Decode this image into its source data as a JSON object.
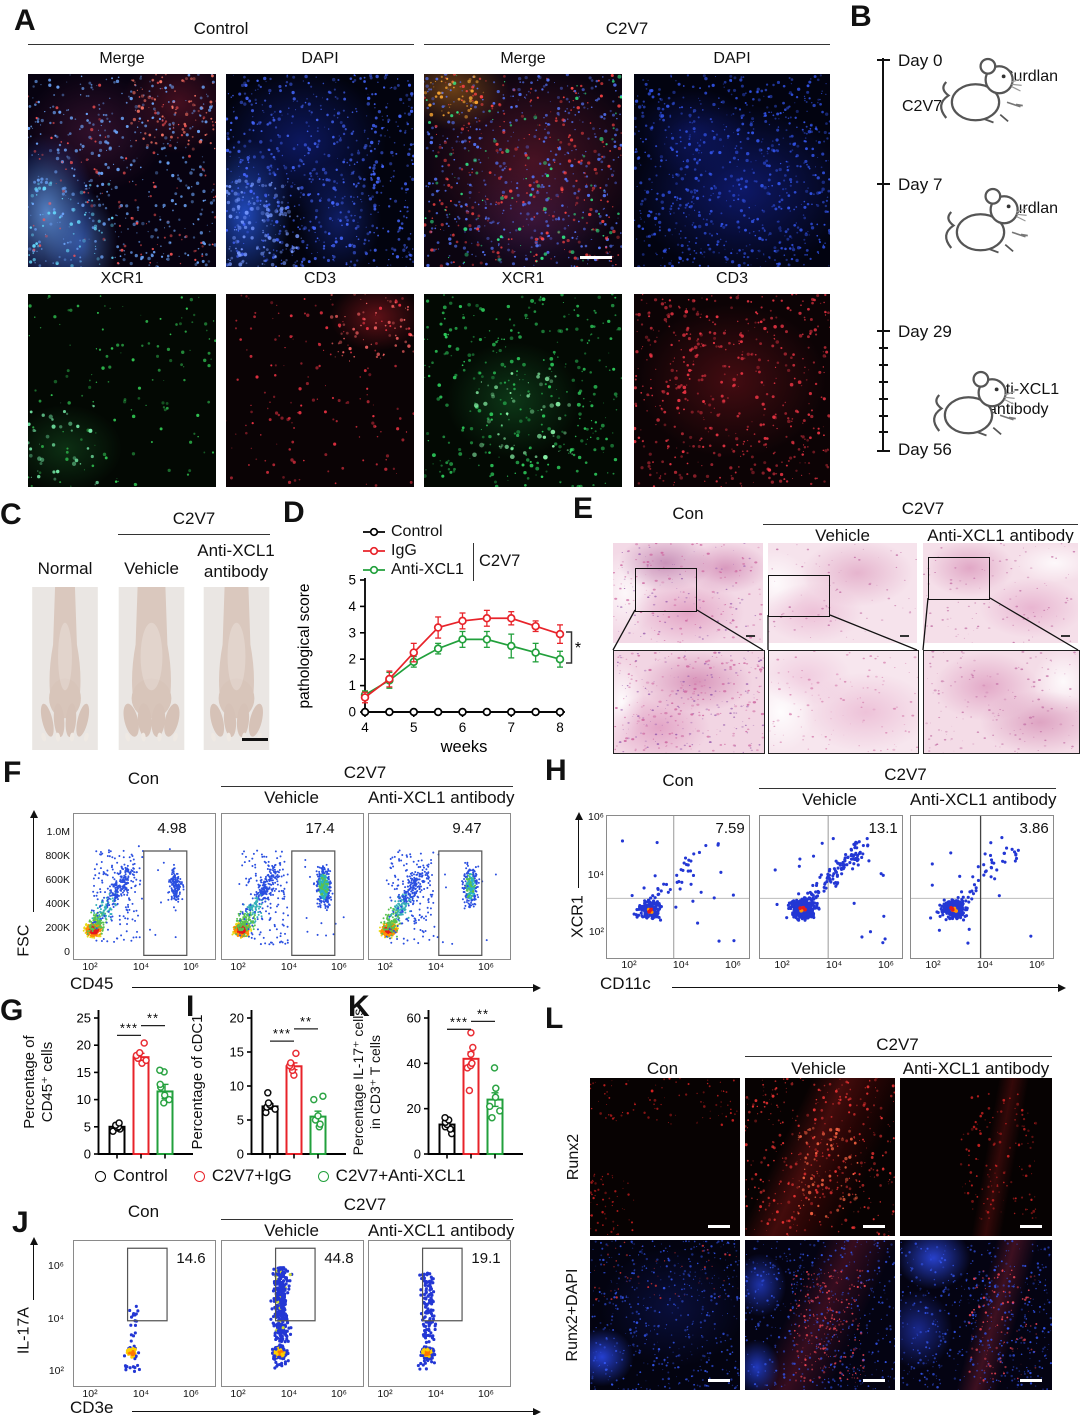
{
  "figure": {
    "groups": {
      "con": "Con",
      "c2v7": "C2V7",
      "vehicle": "Vehicle",
      "anti_xcl1_antibody": "Anti-XCL1 antibody",
      "control": "Control"
    },
    "panelA": {
      "letter": "A",
      "group_control": "Control",
      "group_c2v7": "C2V7",
      "channels": [
        "Merge",
        "DAPI",
        "XCR1",
        "CD3"
      ]
    },
    "panelB": {
      "letter": "B",
      "days": [
        "Day 0",
        "Day 7",
        "Day 29",
        "Day 56"
      ],
      "inj_c2v7": "C2V7",
      "inj_curdlan_1": "Curdlan",
      "inj_curdlan_2": "Curdlan",
      "inj_anti_line1": "anti-XCL1",
      "inj_anti_line2": "antibody"
    },
    "panelC": {
      "letter": "C",
      "header": "C2V7",
      "col1": "Normal",
      "col2": "Vehicle",
      "col3a": "Anti-XCL1",
      "col3b": "antibody"
    },
    "panelD": {
      "letter": "D"
    },
    "panelE": {
      "letter": "E"
    },
    "panelF": {
      "letter": "F"
    },
    "panelG": {
      "letter": "G"
    },
    "panelH": {
      "letter": "H"
    },
    "panelI": {
      "letter": "I"
    },
    "panelJ": {
      "letter": "J"
    },
    "panelK": {
      "letter": "K"
    },
    "panelL": {
      "letter": "L",
      "rows": [
        "Runx2",
        "Runx2+DAPI"
      ]
    },
    "gik_legend": [
      {
        "label": "Control",
        "color": "#000000"
      },
      {
        "label": "C2V7+IgG",
        "color": "#e8232a"
      },
      {
        "label": "C2V7+Anti-XCL1",
        "color": "#22a03c"
      }
    ]
  },
  "chart_data": [
    {
      "id": "D",
      "type": "line",
      "xlabel": "weeks",
      "ylabel": "pathological score",
      "xlim": [
        3.8,
        8.2
      ],
      "ylim": [
        0,
        5
      ],
      "xticks": [
        4,
        5,
        6,
        7,
        8
      ],
      "yticks": [
        0,
        1,
        2,
        3,
        4,
        5
      ],
      "x": [
        4,
        4.5,
        5,
        5.5,
        6,
        6.5,
        7,
        7.5,
        8
      ],
      "series": [
        {
          "name": "Control",
          "color": "#000000",
          "values": [
            0,
            0,
            0,
            0,
            0,
            0,
            0,
            0,
            0
          ],
          "errors": [
            0,
            0,
            0,
            0,
            0,
            0,
            0,
            0,
            0
          ]
        },
        {
          "name": "IgG",
          "color": "#e8232a",
          "values": [
            0.55,
            1.25,
            2.25,
            3.2,
            3.45,
            3.55,
            3.55,
            3.25,
            2.95
          ],
          "errors": [
            0.2,
            0.3,
            0.35,
            0.4,
            0.3,
            0.3,
            0.25,
            0.2,
            0.35
          ]
        },
        {
          "name": "Anti-XCL1",
          "color": "#22a03c",
          "values": [
            0.65,
            1.2,
            1.9,
            2.4,
            2.75,
            2.75,
            2.5,
            2.25,
            2.0
          ],
          "errors": [
            0.15,
            0.3,
            0.2,
            0.2,
            0.3,
            0.3,
            0.45,
            0.35,
            0.3
          ]
        }
      ],
      "legend_group": "C2V7",
      "significance": "*",
      "legend_position": "top",
      "grid": false
    },
    {
      "id": "G",
      "type": "bar",
      "ylabel": "Percentage of\nCD45⁺ cells",
      "ylim": [
        0,
        25
      ],
      "yticks": [
        0,
        5,
        10,
        15,
        20,
        25
      ],
      "categories": [
        "Control",
        "C2V7+IgG",
        "C2V7+Anti-XCL1"
      ],
      "colors": [
        "#000000",
        "#e8232a",
        "#22a03c"
      ],
      "means": [
        5.0,
        17.8,
        11.5
      ],
      "sems": [
        0.4,
        0.7,
        1.3
      ],
      "points": [
        [
          4.2,
          4.6,
          4.8,
          5.0,
          5.3,
          5.7
        ],
        [
          16.7,
          17.2,
          17.6,
          18.1,
          18.6,
          20.4
        ],
        [
          9.4,
          10.0,
          10.8,
          12.3,
          12.8,
          15.1,
          15.4
        ]
      ],
      "significance": [
        {
          "pair": [
            0,
            1
          ],
          "label": "***",
          "y": 21.8
        },
        {
          "pair": [
            1,
            2
          ],
          "label": "**",
          "y": 23.6
        }
      ]
    },
    {
      "id": "I",
      "type": "bar",
      "ylabel": "Percentage of cDC1",
      "ylim": [
        0,
        20
      ],
      "yticks": [
        0,
        5,
        10,
        15,
        20
      ],
      "categories": [
        "Control",
        "C2V7+IgG",
        "C2V7+Anti-XCL1"
      ],
      "colors": [
        "#000000",
        "#e8232a",
        "#22a03c"
      ],
      "means": [
        7.0,
        12.9,
        5.5
      ],
      "sems": [
        0.4,
        0.5,
        0.8
      ],
      "points": [
        [
          6.1,
          6.6,
          6.9,
          7.2,
          7.5,
          9.0
        ],
        [
          11.6,
          12.3,
          12.8,
          13.0,
          13.4,
          14.8
        ],
        [
          4.0,
          4.4,
          5.0,
          5.6,
          8.0,
          8.5
        ]
      ],
      "significance": [
        {
          "pair": [
            0,
            1
          ],
          "label": "***",
          "y": 16.6
        },
        {
          "pair": [
            1,
            2
          ],
          "label": "**",
          "y": 18.4
        }
      ]
    },
    {
      "id": "K",
      "type": "bar",
      "ylabel": "Percentage IL-17⁺ cells\nin CD3⁺ T cells",
      "ylim": [
        0,
        60
      ],
      "yticks": [
        0,
        20,
        40,
        60
      ],
      "categories": [
        "Control",
        "C2V7+IgG",
        "C2V7+Anti-XCL1"
      ],
      "colors": [
        "#000000",
        "#e8232a",
        "#22a03c"
      ],
      "means": [
        13,
        42,
        24
      ],
      "sems": [
        1,
        3,
        3
      ],
      "points": [
        [
          9,
          11,
          12,
          13,
          14,
          15,
          16
        ],
        [
          28,
          38,
          39,
          40,
          44,
          47,
          53.5
        ],
        [
          16,
          19,
          21,
          25,
          29,
          38
        ]
      ],
      "significance": [
        {
          "pair": [
            0,
            1
          ],
          "label": "***",
          "y": 55
        },
        {
          "pair": [
            1,
            2
          ],
          "label": "**",
          "y": 58.5
        }
      ]
    },
    {
      "id": "F",
      "type": "flow-density",
      "xlabel": "CD45",
      "ylabel": "FSC",
      "xticks": [
        "10²",
        "10⁴",
        "10⁶"
      ],
      "yticks": [
        "0",
        "200K",
        "400K",
        "600K",
        "800K",
        "1.0M"
      ],
      "plots": [
        {
          "group": "Con",
          "gate_value": "4.98"
        },
        {
          "group": "Vehicle",
          "gate_value": "17.4"
        },
        {
          "group": "Anti-XCL1 antibody",
          "gate_value": "9.47"
        }
      ]
    },
    {
      "id": "H",
      "type": "flow-scatter",
      "xlabel": "CD11c",
      "ylabel": "XCR1",
      "xticks": [
        "10²",
        "10⁴",
        "10⁶"
      ],
      "yticks": [
        "10⁶",
        "10⁴",
        "10²"
      ],
      "plots": [
        {
          "group": "Con",
          "gate_value": "7.59"
        },
        {
          "group": "Vehicle",
          "gate_value": "13.1"
        },
        {
          "group": "Anti-XCL1 antibody",
          "gate_value": "3.86"
        }
      ]
    },
    {
      "id": "J",
      "type": "flow-scatter",
      "xlabel": "CD3e",
      "ylabel": "IL-17A",
      "xticks": [
        "10²",
        "10⁴",
        "10⁶"
      ],
      "yticks": [
        "10⁶",
        "10⁴",
        "10²"
      ],
      "plots": [
        {
          "group": "Con",
          "gate_value": "14.6"
        },
        {
          "group": "Vehicle",
          "gate_value": "44.8"
        },
        {
          "group": "Anti-XCL1 antibody",
          "gate_value": "19.1"
        }
      ]
    }
  ]
}
